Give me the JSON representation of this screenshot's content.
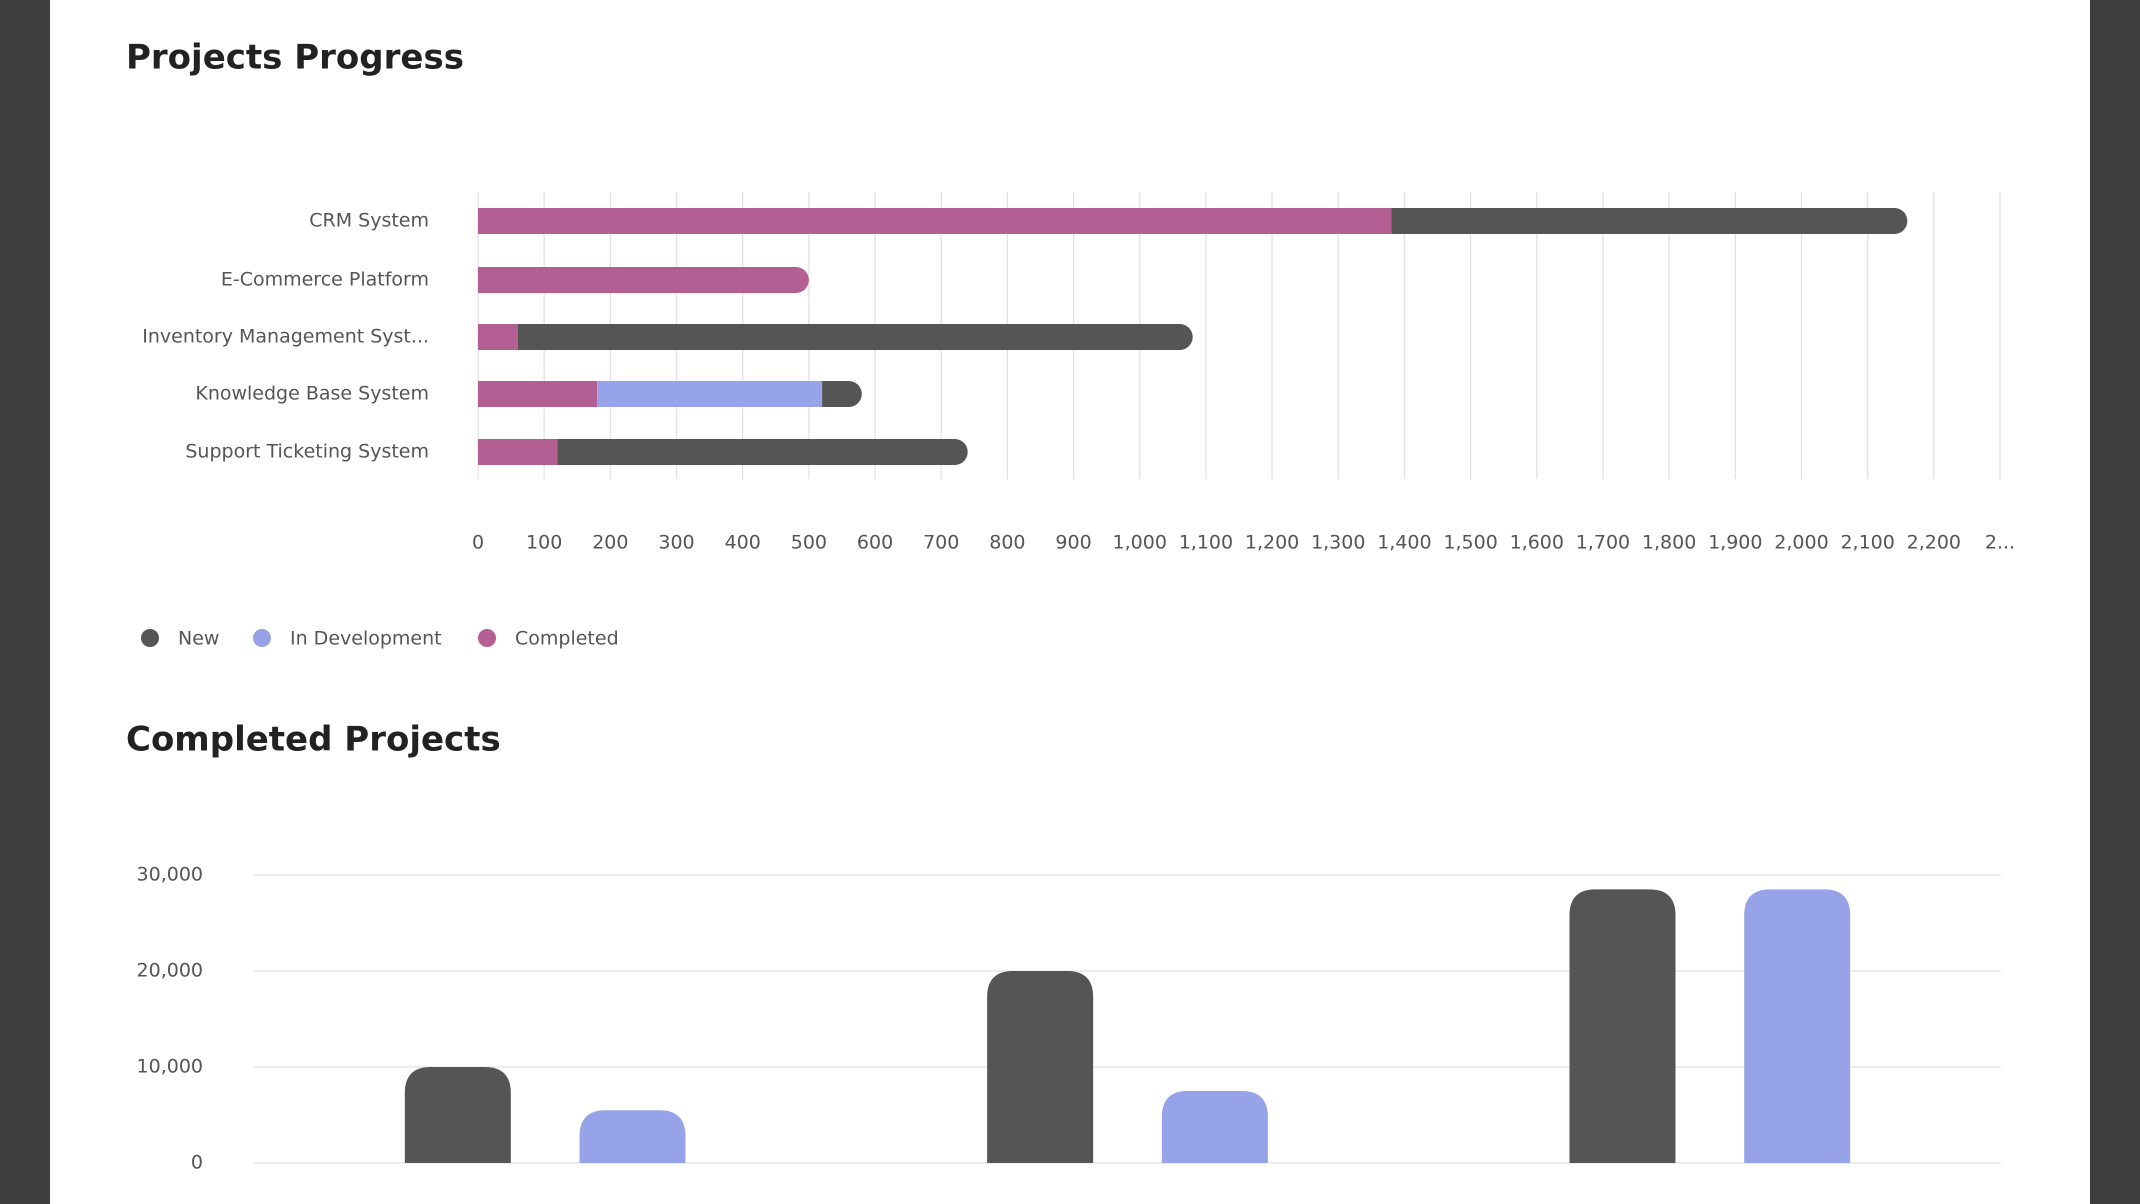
{
  "chart_data": [
    {
      "type": "stacked-barh",
      "title": "Projects Progress",
      "categories": [
        "CRM System",
        "E-Commerce Platform",
        "Inventory Management Syst...",
        "Knowledge Base System",
        "Support Ticketing System"
      ],
      "series": [
        {
          "name": "New",
          "color": "#555555",
          "values": [
            780,
            0,
            1020,
            60,
            620
          ]
        },
        {
          "name": "In Development",
          "color": "#97a3e8",
          "values": [
            0,
            0,
            0,
            340,
            0
          ]
        },
        {
          "name": "Completed",
          "color": "#b45f93",
          "values": [
            1380,
            500,
            60,
            180,
            120
          ]
        }
      ],
      "stack_order": [
        "Completed",
        "In Development",
        "New"
      ],
      "xlim": [
        0,
        2300
      ],
      "xticks": [
        0,
        100,
        200,
        300,
        400,
        500,
        600,
        700,
        800,
        900,
        {
          "value": 1000,
          "label": "1,000"
        },
        {
          "value": 1100,
          "label": "1,100"
        },
        {
          "value": 1200,
          "label": "1,200"
        },
        {
          "value": 1300,
          "label": "1,300"
        },
        {
          "value": 1400,
          "label": "1,400"
        },
        {
          "value": 1500,
          "label": "1,500"
        },
        {
          "value": 1600,
          "label": "1,600"
        },
        {
          "value": 1700,
          "label": "1,700"
        },
        {
          "value": 1800,
          "label": "1,800"
        },
        {
          "value": 1900,
          "label": "1,900"
        },
        {
          "value": 2000,
          "label": "2,000"
        },
        {
          "value": 2100,
          "label": "2,100"
        },
        {
          "value": 2200,
          "label": "2,200"
        },
        {
          "value": 2300,
          "label": "2..."
        }
      ],
      "grid": true,
      "legend": "bottom-left"
    },
    {
      "type": "bar",
      "title": "Completed Projects",
      "categories": [
        null,
        null,
        null
      ],
      "series": [
        {
          "color": "#555555",
          "values": [
            10000,
            20000,
            28500
          ]
        },
        {
          "color": "#97a3e8",
          "values": [
            5500,
            7500,
            28500
          ]
        }
      ],
      "ylim": [
        0,
        30000
      ],
      "yticks": [
        0,
        {
          "value": 10000,
          "label": "10,000"
        },
        {
          "value": 20000,
          "label": "20,000"
        },
        {
          "value": 30000,
          "label": "30,000"
        }
      ],
      "grid": true
    }
  ]
}
